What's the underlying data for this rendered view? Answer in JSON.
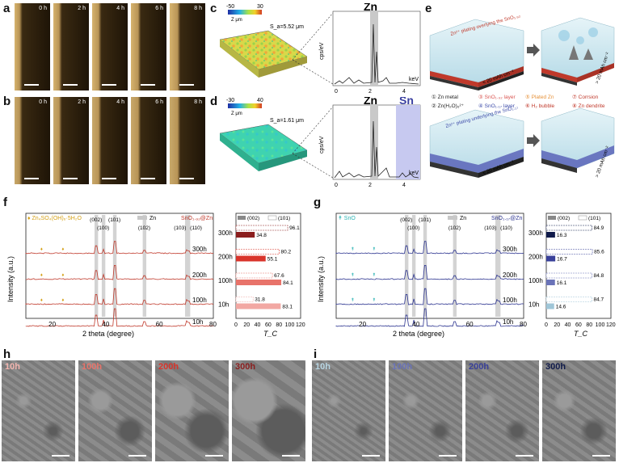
{
  "panels": {
    "a": "a",
    "b": "b",
    "c": "c",
    "d": "d",
    "e": "e",
    "f": "f",
    "g": "g",
    "h": "h",
    "i": "i"
  },
  "time_labels": [
    "0 h",
    "2 h",
    "4 h",
    "6 h",
    "8 h"
  ],
  "panel_c": {
    "colorbar_min": "-50",
    "colorbar_max": "30",
    "colorbar_label": "Z μm",
    "sa": "S_a=5.52 μm",
    "element": "Zn",
    "ylabel": "cps/eV",
    "xunit": "keV",
    "xticks": [
      "0",
      "2",
      "4"
    ]
  },
  "panel_d": {
    "colorbar_min": "-30",
    "colorbar_max": "40",
    "colorbar_label": "Z μm",
    "sa": "S_a=1.61 μm",
    "element": "Zn",
    "element2": "Sn",
    "ylabel": "cps/eV",
    "xunit": "keV",
    "xticks": [
      "0",
      "2",
      "4"
    ]
  },
  "panel_e": {
    "top_text": "Zn²⁺ plating overlying the SnO₁.₉₂",
    "bottom_text": "Zn²⁺ plating underlying the SnO₁.₁₇",
    "cap_low": "< 20 mAh cm⁻²",
    "cap_high": "> 20 mAh cm⁻²",
    "legend": [
      {
        "num": "①",
        "text": "Zn metal",
        "color": "#222222"
      },
      {
        "num": "③",
        "text": "SnO₁.₉₂ layer",
        "color": "#d9534f"
      },
      {
        "num": "⑤",
        "text": "Plated Zn",
        "color": "#e69138"
      },
      {
        "num": "⑦",
        "text": "Corrsion",
        "color": "#c0392b"
      },
      {
        "num": "②",
        "text": "Zn(H₂O)₆²⁺",
        "color": "#222222"
      },
      {
        "num": "④",
        "text": "SnO₁.₁₇ layer",
        "color": "#3b4aa8"
      },
      {
        "num": "⑥",
        "text": "H₂ bubble",
        "color": "#c0392b"
      },
      {
        "num": "⑧",
        "text": "Zn dendrite",
        "color": "#c0392b"
      }
    ]
  },
  "panel_f": {
    "legend_byproduct": "Zn₄SO₄(OH)₆·5H₂O",
    "legend_zn": "Zn",
    "sample": "SnO₁.₉₂@Zn",
    "peaks": [
      "(002)",
      "(100)",
      "(101)",
      "(102)",
      "(103)",
      "(110)"
    ],
    "xlabel": "2 theta (degree)",
    "ylabel": "Intensity (a.u.)",
    "xticks": [
      "20",
      "40",
      "60",
      "80"
    ],
    "times": [
      "300h",
      "200h",
      "100h",
      "10h"
    ],
    "bar_legend": [
      "(002)",
      "(101)"
    ],
    "bar_xlabel": "T_C",
    "bar_xticks": [
      "0",
      "20",
      "40",
      "60",
      "80",
      "100",
      "120"
    ]
  },
  "panel_g": {
    "legend_byproduct": "SnO",
    "legend_zn": "Zn",
    "sample": "SnO₁.₁₇@Zn",
    "peaks": [
      "(002)",
      "(100)",
      "(101)",
      "(102)",
      "(103)",
      "(110)"
    ],
    "xlabel": "2 theta (degree)",
    "ylabel": "Intensity (a.u.)",
    "xticks": [
      "20",
      "40",
      "60",
      "80"
    ],
    "times": [
      "300h",
      "200h",
      "100h",
      "10h"
    ],
    "bar_legend": [
      "(002)",
      "(101)"
    ],
    "bar_xlabel": "T_C",
    "bar_xticks": [
      "0",
      "20",
      "40",
      "60",
      "80",
      "100",
      "120"
    ]
  },
  "sem_h": [
    "10h",
    "100h",
    "200h",
    "300h"
  ],
  "sem_i": [
    "10h",
    "100h",
    "200h",
    "300h"
  ],
  "chart_data": [
    {
      "type": "bar",
      "title": "",
      "xlabel": "T_C",
      "categories": [
        "300h",
        "200h",
        "100h",
        "10h"
      ],
      "series": [
        {
          "name": "(002)",
          "values": [
            34.8,
            55.1,
            84.1,
            83.1
          ]
        },
        {
          "name": "(101)",
          "values": [
            96.1,
            80.2,
            67.6,
            31.8
          ]
        }
      ],
      "xlim": [
        0,
        120
      ]
    },
    {
      "type": "bar",
      "title": "",
      "xlabel": "T_C",
      "categories": [
        "300h",
        "200h",
        "100h",
        "10h"
      ],
      "series": [
        {
          "name": "(002)",
          "values": [
            16.3,
            16.7,
            16.1,
            14.6
          ]
        },
        {
          "name": "(101)",
          "values": [
            84.9,
            85.6,
            84.8,
            84.7
          ]
        }
      ],
      "xlim": [
        0,
        120
      ]
    }
  ]
}
